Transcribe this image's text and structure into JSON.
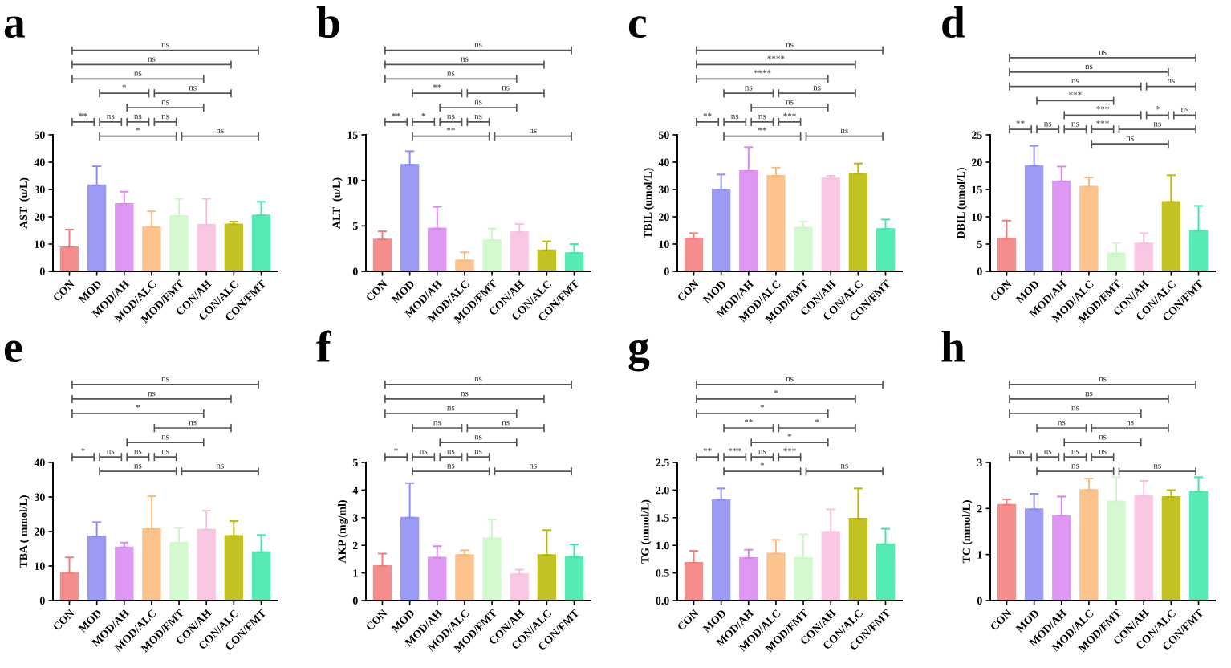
{
  "chart_data": [
    {
      "type": "bar",
      "title": "a",
      "ylabel": "AST  (u/L)",
      "categories": [
        "CON",
        "MOD",
        "MOD/AH",
        "MOD/ALC",
        "MOD/FMT",
        "CON/AH",
        "CON/ALC",
        "CON/FMT"
      ],
      "values": [
        8.8,
        31.5,
        24.7,
        16.2,
        20.2,
        17,
        17.2,
        20.5
      ],
      "errors": [
        6.5,
        7,
        4.5,
        5.8,
        6.4,
        9.6,
        1,
        5
      ],
      "colors": [
        "#f47a7a",
        "#8a8af5",
        "#d985f0",
        "#fdb97a",
        "#cdf7c8",
        "#f9bde0",
        "#b8b800",
        "#3ae8a8"
      ],
      "ylim": [
        0,
        50
      ],
      "yticks": [
        0,
        10,
        20,
        30,
        40,
        50
      ],
      "annotations": [
        "*",
        "ns",
        "**",
        "ns",
        "ns",
        "ns",
        "ns",
        "*",
        "ns",
        "ns",
        "ns",
        "ns"
      ]
    },
    {
      "type": "bar",
      "title": "b",
      "ylabel": "ALT  (u/L)",
      "categories": [
        "CON",
        "MOD",
        "MOD/AH",
        "MOD/ALC",
        "MOD/FMT",
        "CON/AH",
        "CON/ALC",
        "CON/FMT"
      ],
      "values": [
        3.5,
        11.7,
        4.7,
        1.2,
        3.4,
        4.3,
        2.3,
        2.0
      ],
      "errors": [
        0.9,
        1.5,
        2.4,
        0.9,
        1.3,
        0.9,
        1.0,
        1.0
      ],
      "colors": [
        "#f47a7a",
        "#8a8af5",
        "#d985f0",
        "#fdb97a",
        "#cdf7c8",
        "#f9bde0",
        "#b8b800",
        "#3ae8a8"
      ],
      "ylim": [
        0,
        15
      ],
      "yticks": [
        0,
        5,
        10,
        15
      ],
      "annotations": [
        "**",
        "ns",
        "**",
        "*",
        "ns",
        "ns",
        "ns",
        "**",
        "ns",
        "ns",
        "ns",
        "ns"
      ]
    },
    {
      "type": "bar",
      "title": "c",
      "ylabel": "TBIL (umol/L)",
      "categories": [
        "CON",
        "MOD",
        "MOD/AH",
        "MOD/ALC",
        "MOD/FMT",
        "CON/AH",
        "CON/ALC",
        "CON/FMT"
      ],
      "values": [
        12,
        30,
        36.7,
        35,
        16,
        34,
        35.8,
        15.5
      ],
      "errors": [
        2,
        5.5,
        8.8,
        3,
        2.3,
        1,
        3.7,
        3.5
      ],
      "colors": [
        "#f47a7a",
        "#8a8af5",
        "#d985f0",
        "#fdb97a",
        "#cdf7c8",
        "#f9bde0",
        "#b8b800",
        "#3ae8a8"
      ],
      "ylim": [
        0,
        50
      ],
      "yticks": [
        0,
        10,
        20,
        30,
        40,
        50
      ],
      "annotations": [
        "**",
        "ns",
        "**",
        "ns",
        "ns",
        "***",
        "ns",
        "ns",
        "ns",
        "****",
        "****",
        "ns"
      ]
    },
    {
      "type": "bar",
      "title": "d",
      "ylabel": "DBIL (umol/L)",
      "categories": [
        "CON",
        "MOD",
        "MOD/AH",
        "MOD/ALC",
        "MOD/FMT",
        "CON/AH",
        "CON/ALC",
        "CON/FMT"
      ],
      "values": [
        6,
        19.3,
        16.5,
        15.5,
        3.3,
        5.1,
        12.7,
        7.4
      ],
      "errors": [
        3.3,
        3.7,
        2.7,
        1.7,
        1.9,
        1.9,
        4.9,
        4.6
      ],
      "colors": [
        "#f47a7a",
        "#8a8af5",
        "#d985f0",
        "#fdb97a",
        "#cdf7c8",
        "#f9bde0",
        "#b8b800",
        "#3ae8a8"
      ],
      "ylim": [
        0,
        25
      ],
      "yticks": [
        0,
        5,
        10,
        15,
        20,
        25
      ],
      "annotations": [
        "ns",
        "**",
        "ns",
        "ns",
        "***",
        "ns",
        "***",
        "*",
        "ns",
        "***",
        "ns",
        "ns",
        "ns",
        "ns"
      ]
    },
    {
      "type": "bar",
      "title": "e",
      "ylabel": "TBA ( mmol/L)",
      "categories": [
        "CON",
        "MOD",
        "MOD/AH",
        "MOD/ALC",
        "MOD/FMT",
        "CON/AH",
        "CON/ALC",
        "CON/FMT"
      ],
      "values": [
        8,
        18.5,
        15.4,
        20.7,
        16.7,
        20.5,
        18.7,
        14
      ],
      "errors": [
        4.5,
        4.2,
        1.4,
        9.5,
        4.3,
        5.5,
        4.3,
        5
      ],
      "colors": [
        "#f47a7a",
        "#8a8af5",
        "#d985f0",
        "#fdb97a",
        "#cdf7c8",
        "#f9bde0",
        "#b8b800",
        "#3ae8a8"
      ],
      "ylim": [
        0,
        40
      ],
      "yticks": [
        0,
        10,
        20,
        30,
        40
      ],
      "annotations": [
        "ns",
        "ns",
        "*",
        "ns",
        "ns",
        "ns",
        "ns",
        "ns",
        "*",
        "ns",
        "ns"
      ]
    },
    {
      "type": "bar",
      "title": "f",
      "ylabel": "AKP (mg/ml)",
      "categories": [
        "CON",
        "MOD",
        "MOD/AH",
        "MOD/ALC",
        "MOD/FMT",
        "CON/AH",
        "CON/ALC",
        "CON/FMT"
      ],
      "values": [
        1.25,
        3.0,
        1.55,
        1.65,
        2.25,
        0.95,
        1.65,
        1.58
      ],
      "errors": [
        0.45,
        1.25,
        0.42,
        0.17,
        0.68,
        0.17,
        0.9,
        0.45
      ],
      "colors": [
        "#f47a7a",
        "#8a8af5",
        "#d985f0",
        "#fdb97a",
        "#cdf7c8",
        "#f9bde0",
        "#b8b800",
        "#3ae8a8"
      ],
      "ylim": [
        0,
        5
      ],
      "yticks": [
        0,
        1,
        2,
        3,
        4,
        5
      ],
      "annotations": [
        "ns",
        "ns",
        "*",
        "ns",
        "ns",
        "ns",
        "ns",
        "ns",
        "ns",
        "ns",
        "ns",
        "ns"
      ]
    },
    {
      "type": "bar",
      "title": "g",
      "ylabel": "TG (mmol/L)",
      "categories": [
        "CON",
        "MOD",
        "MOD/AH",
        "MOD/ALC",
        "MOD/FMT",
        "CON/AH",
        "CON/ALC",
        "CON/FMT"
      ],
      "values": [
        0.68,
        1.82,
        0.77,
        0.85,
        0.77,
        1.24,
        1.48,
        1.02
      ],
      "errors": [
        0.22,
        0.21,
        0.15,
        0.25,
        0.43,
        0.41,
        0.55,
        0.28
      ],
      "colors": [
        "#f47a7a",
        "#8a8af5",
        "#d985f0",
        "#fdb97a",
        "#cdf7c8",
        "#f9bde0",
        "#b8b800",
        "#3ae8a8"
      ],
      "ylim": [
        0,
        2.5
      ],
      "yticks": [
        {
          "value": 0,
          "label": "0.0"
        },
        0.5,
        {
          "value": 1,
          "label": "1.0"
        },
        1.5,
        {
          "value": 2,
          "label": "2.0"
        },
        2.5
      ],
      "annotations": [
        "*",
        "ns",
        "**",
        "***",
        "ns",
        "***",
        "*",
        "**",
        "*",
        "*",
        "*",
        "ns"
      ]
    },
    {
      "type": "bar",
      "title": "h",
      "ylabel": "TC (mmol/L)",
      "categories": [
        "CON",
        "MOD",
        "MOD/AH",
        "MOD/ALC",
        "MOD/FMT",
        "CON/AH",
        "CON/ALC",
        "CON/FMT"
      ],
      "values": [
        2.08,
        1.98,
        1.84,
        2.4,
        2.15,
        2.28,
        2.25,
        2.36
      ],
      "errors": [
        0.12,
        0.34,
        0.42,
        0.25,
        0.53,
        0.32,
        0.15,
        0.32
      ],
      "colors": [
        "#f47a7a",
        "#8a8af5",
        "#d985f0",
        "#fdb97a",
        "#cdf7c8",
        "#f9bde0",
        "#b8b800",
        "#3ae8a8"
      ],
      "ylim": [
        0,
        3
      ],
      "yticks": [
        0,
        1,
        2,
        3
      ],
      "annotations": [
        "ns",
        "ns",
        "ns",
        "ns",
        "ns",
        "ns",
        "ns",
        "ns",
        "ns",
        "ns",
        "ns",
        "ns"
      ]
    }
  ]
}
